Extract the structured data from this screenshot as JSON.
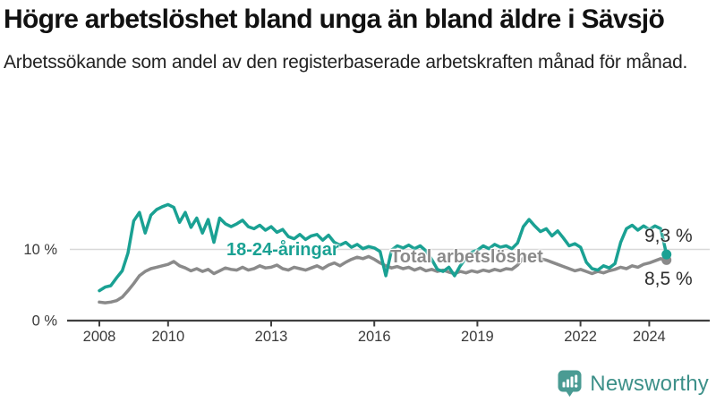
{
  "header": {
    "title": "Högre arbetslöshet bland unga än bland äldre i Sävsjö",
    "subtitle": "Arbetssökande som andel av den registerbaserade arbetskraften månad för månad."
  },
  "chart_data": {
    "type": "line",
    "title": "Högre arbetslöshet bland unga än bland äldre i Sävsjö",
    "xlabel": "",
    "ylabel": "Arbetssökande som andel av den registerbaserade arbetskraften (%)",
    "x_unit": "år (månadsdata)",
    "x_start_year": 2008.0,
    "x_step_years": 0.1667,
    "x_end_year": 2024.5,
    "xlim": [
      2007.3,
      2025.2
    ],
    "ylim": [
      0,
      17.5
    ],
    "x_ticks": [
      "2008",
      "2010",
      "2013",
      "2016",
      "2019",
      "2022",
      "2024"
    ],
    "x_tick_years": [
      2008,
      2010,
      2013,
      2016,
      2019,
      2022,
      2024
    ],
    "y_ticks": [
      {
        "value": 0,
        "label": "0 %"
      },
      {
        "value": 10,
        "label": "10 %"
      }
    ],
    "grid": "horizontal gridline at 10 % only",
    "legend_position": "inline labels on lines",
    "series": [
      {
        "name": "18-24-åringar",
        "color": "#1aa193",
        "end_value": 9.3,
        "end_label": "9,3 %",
        "values": [
          4.2,
          4.7,
          4.9,
          6.0,
          7.0,
          9.5,
          14.0,
          15.2,
          12.3,
          14.8,
          15.6,
          16.0,
          16.3,
          15.9,
          13.8,
          15.2,
          13.1,
          14.4,
          12.3,
          14.2,
          11.0,
          14.4,
          13.6,
          13.2,
          13.6,
          14.1,
          13.2,
          12.9,
          13.4,
          12.7,
          13.2,
          12.4,
          12.8,
          11.8,
          11.5,
          12.1,
          11.4,
          11.9,
          12.1,
          11.3,
          12.0,
          11.0,
          10.6,
          11.0,
          10.3,
          10.7,
          10.1,
          10.4,
          10.2,
          9.7,
          6.3,
          9.9,
          10.5,
          10.2,
          10.6,
          10.1,
          10.5,
          9.8,
          8.6,
          7.2,
          6.9,
          7.5,
          6.3,
          7.7,
          8.8,
          9.6,
          9.9,
          10.5,
          10.1,
          10.7,
          10.3,
          10.5,
          10.1,
          10.9,
          13.2,
          14.2,
          13.3,
          12.5,
          12.9,
          11.9,
          12.6,
          11.6,
          10.5,
          10.8,
          10.3,
          8.2,
          7.3,
          7.1,
          7.7,
          7.4,
          8.0,
          11.0,
          12.9,
          13.4,
          12.7,
          13.3,
          12.8,
          13.3,
          12.9,
          9.3
        ]
      },
      {
        "name": "Total arbetslöshet",
        "color": "#8a8a8a",
        "end_value": 8.5,
        "end_label": "8,5 %",
        "values": [
          2.6,
          2.5,
          2.6,
          2.8,
          3.3,
          4.2,
          5.2,
          6.3,
          6.9,
          7.3,
          7.5,
          7.7,
          7.9,
          8.3,
          7.7,
          7.4,
          7.0,
          7.3,
          6.9,
          7.2,
          6.6,
          7.0,
          7.4,
          7.2,
          7.1,
          7.5,
          7.1,
          7.3,
          7.7,
          7.4,
          7.5,
          7.8,
          7.3,
          7.1,
          7.5,
          7.3,
          7.1,
          7.4,
          7.7,
          7.3,
          7.8,
          8.1,
          7.7,
          8.2,
          8.6,
          8.9,
          8.7,
          9.0,
          8.6,
          8.1,
          7.7,
          7.4,
          7.6,
          7.3,
          7.5,
          7.1,
          7.4,
          7.0,
          7.2,
          6.9,
          7.1,
          6.8,
          6.6,
          6.9,
          6.7,
          7.0,
          6.8,
          7.1,
          6.9,
          7.2,
          7.0,
          7.3,
          7.2,
          7.8,
          8.8,
          9.2,
          9.0,
          8.7,
          8.5,
          8.2,
          7.9,
          7.6,
          7.3,
          7.0,
          7.2,
          6.9,
          6.6,
          6.9,
          6.7,
          7.0,
          7.2,
          7.5,
          7.3,
          7.7,
          7.5,
          7.9,
          8.1,
          8.4,
          8.7,
          8.5
        ]
      }
    ],
    "colors": {
      "gridline": "#d8d8d8",
      "axis": "#3f3f3f",
      "tick_label": "#3a3a3a"
    }
  },
  "footer": {
    "brand": "Newsworthy",
    "logo_icon": "bar-chart-speech-bubble-icon",
    "brand_color": "#3d9089",
    "logo_bg_color": "#4a9b93"
  }
}
